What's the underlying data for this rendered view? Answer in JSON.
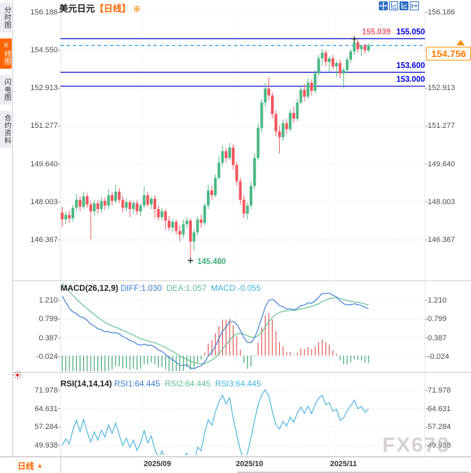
{
  "app": {
    "symbol": "美元日元",
    "period": "【日线】",
    "add_symbol": "⊕"
  },
  "sidebar": {
    "tabs": [
      {
        "label": "分时图",
        "active": false
      },
      {
        "label": "K线图",
        "active": true
      },
      {
        "label": "闪电图",
        "active": false
      },
      {
        "label": "合约资料",
        "active": false
      }
    ]
  },
  "toolbar": {
    "icons": [
      "pan-icon",
      "fit-axis-icon",
      "fit-chart-icon",
      "exit-icon"
    ]
  },
  "bottom_bar": {
    "period_label": "日线",
    "arrow": "▲"
  },
  "watermark": "FX678",
  "colors": {
    "up": "#4cb885",
    "down": "#f2565c",
    "blue_line": "#1212cf",
    "dashed_line": "#2f9fe8",
    "orange": "#ff7a00",
    "pink": "#ee5d74",
    "green_label": "#3eae7c",
    "diff": "#3a7bd5",
    "dea": "#5fc08d",
    "macd_cyan": "#3db3da",
    "hist_up": "#e05252",
    "hist_down": "#3ea36f",
    "rsi": "#49b3dc",
    "grid": "#dedede",
    "axis_text": "#4d4d4d"
  },
  "chart_data": {
    "type": "candlestick",
    "title": "美元日元 日线",
    "main": {
      "ylim": [
        146.367,
        156.186
      ],
      "axis_labels": [
        "156.186",
        "154.550",
        "152.913",
        "151.277",
        "149.640",
        "148.003",
        "146.367"
      ],
      "axis_values": [
        156.186,
        154.55,
        152.913,
        151.277,
        149.64,
        148.003,
        146.367
      ],
      "hlines": [
        {
          "value": 155.05,
          "label": "155.050"
        },
        {
          "value": 153.6,
          "label": "153.600"
        },
        {
          "value": 153.0,
          "label": "153.000"
        }
      ],
      "current_price": {
        "value": 154.756,
        "label": "154.756"
      },
      "high_marker": {
        "index": 82,
        "value": 155.039,
        "label": "155.039"
      },
      "low_marker": {
        "index": 36,
        "value": 145.48,
        "label": "145.480"
      },
      "candles": [
        [
          147.55,
          147.8,
          146.95,
          147.25
        ],
        [
          147.25,
          147.6,
          147.05,
          147.45
        ],
        [
          147.45,
          147.65,
          147.1,
          147.3
        ],
        [
          147.3,
          147.9,
          147.15,
          147.75
        ],
        [
          147.75,
          148.35,
          147.6,
          148.1
        ],
        [
          148.1,
          148.25,
          147.6,
          147.8
        ],
        [
          147.8,
          148.45,
          147.7,
          148.25
        ],
        [
          148.25,
          148.4,
          147.75,
          147.9
        ],
        [
          147.9,
          148.05,
          146.4,
          147.6
        ],
        [
          147.6,
          148.1,
          147.4,
          147.95
        ],
        [
          147.95,
          148.1,
          147.5,
          147.7
        ],
        [
          147.7,
          148.2,
          147.55,
          148.05
        ],
        [
          148.05,
          148.2,
          147.65,
          147.85
        ],
        [
          147.85,
          148.55,
          147.7,
          148.3
        ],
        [
          148.3,
          148.45,
          147.85,
          148.05
        ],
        [
          148.05,
          148.75,
          147.95,
          148.45
        ],
        [
          148.45,
          148.6,
          147.95,
          148.1
        ],
        [
          148.1,
          148.25,
          147.55,
          147.75
        ],
        [
          147.75,
          148.15,
          147.6,
          148.0
        ],
        [
          148.0,
          148.1,
          147.35,
          147.7
        ],
        [
          147.7,
          148.05,
          147.5,
          147.95
        ],
        [
          147.95,
          148.1,
          147.45,
          147.6
        ],
        [
          147.6,
          147.95,
          147.4,
          147.85
        ],
        [
          147.85,
          148.7,
          147.75,
          148.3
        ],
        [
          148.3,
          148.45,
          147.8,
          147.9
        ],
        [
          147.9,
          148.25,
          147.7,
          148.15
        ],
        [
          148.15,
          148.3,
          147.3,
          147.7
        ],
        [
          147.7,
          147.85,
          147.2,
          147.35
        ],
        [
          147.35,
          147.75,
          147.2,
          147.6
        ],
        [
          147.6,
          147.7,
          146.8,
          147.2
        ],
        [
          147.2,
          147.4,
          146.75,
          146.9
        ],
        [
          146.9,
          147.3,
          146.7,
          147.15
        ],
        [
          147.15,
          147.25,
          146.6,
          146.75
        ],
        [
          146.75,
          147.0,
          146.3,
          146.6
        ],
        [
          146.6,
          147.25,
          146.45,
          147.05
        ],
        [
          147.05,
          147.35,
          146.85,
          147.2
        ],
        [
          147.2,
          147.3,
          145.48,
          146.3
        ],
        [
          146.3,
          146.85,
          145.9,
          146.7
        ],
        [
          146.7,
          147.4,
          146.55,
          147.25
        ],
        [
          147.25,
          147.45,
          146.9,
          147.1
        ],
        [
          147.1,
          147.95,
          147.0,
          147.85
        ],
        [
          147.85,
          148.75,
          147.7,
          148.5
        ],
        [
          148.5,
          148.7,
          148.1,
          148.3
        ],
        [
          148.3,
          149.2,
          148.2,
          149.05
        ],
        [
          149.05,
          150.0,
          148.95,
          149.7
        ],
        [
          149.7,
          150.45,
          149.55,
          150.2
        ],
        [
          150.2,
          150.35,
          149.7,
          149.9
        ],
        [
          149.9,
          150.55,
          149.8,
          150.35
        ],
        [
          150.35,
          150.5,
          149.4,
          149.6
        ],
        [
          149.6,
          149.75,
          148.7,
          148.9
        ],
        [
          148.9,
          149.05,
          147.9,
          148.1
        ],
        [
          148.1,
          148.3,
          147.3,
          147.5
        ],
        [
          147.5,
          148.0,
          147.25,
          147.85
        ],
        [
          147.85,
          148.9,
          147.7,
          148.7
        ],
        [
          148.7,
          150.1,
          148.55,
          149.9
        ],
        [
          149.9,
          151.4,
          149.8,
          151.2
        ],
        [
          151.2,
          152.45,
          151.0,
          152.3
        ],
        [
          152.3,
          153.15,
          152.1,
          152.9
        ],
        [
          152.9,
          153.4,
          152.4,
          152.6
        ],
        [
          152.6,
          152.75,
          151.6,
          151.8
        ],
        [
          151.8,
          151.95,
          150.85,
          151.05
        ],
        [
          151.05,
          151.3,
          150.1,
          150.8
        ],
        [
          150.8,
          151.55,
          150.65,
          151.4
        ],
        [
          151.4,
          151.6,
          150.95,
          151.15
        ],
        [
          151.15,
          152.0,
          151.05,
          151.85
        ],
        [
          151.85,
          152.1,
          151.4,
          151.6
        ],
        [
          151.6,
          152.45,
          151.5,
          152.3
        ],
        [
          152.3,
          153.0,
          152.2,
          152.85
        ],
        [
          152.85,
          153.1,
          152.35,
          152.55
        ],
        [
          152.55,
          153.35,
          152.45,
          153.15
        ],
        [
          153.15,
          153.3,
          152.6,
          152.8
        ],
        [
          152.8,
          153.7,
          152.7,
          153.55
        ],
        [
          153.55,
          154.35,
          153.45,
          154.2
        ],
        [
          154.2,
          154.6,
          153.9,
          154.45
        ],
        [
          154.45,
          154.55,
          153.85,
          154.05
        ],
        [
          154.05,
          154.3,
          153.6,
          154.2
        ],
        [
          154.2,
          154.35,
          153.7,
          153.85
        ],
        [
          153.85,
          154.1,
          153.4,
          154.0
        ],
        [
          154.0,
          154.15,
          153.35,
          153.55
        ],
        [
          153.55,
          153.8,
          152.9,
          153.7
        ],
        [
          153.7,
          154.25,
          153.55,
          154.15
        ],
        [
          154.15,
          154.6,
          154.0,
          154.5
        ],
        [
          154.5,
          155.039,
          154.35,
          154.9
        ],
        [
          154.9,
          155.0,
          154.45,
          154.6
        ],
        [
          154.6,
          154.8,
          154.3,
          154.75
        ],
        [
          154.75,
          154.85,
          154.4,
          154.55
        ],
        [
          154.55,
          154.85,
          154.45,
          154.756
        ]
      ]
    },
    "macd": {
      "title": "MACD(26,12,9)",
      "diff_text": "DIFF:1.030",
      "dea_text": "DEA:1.057",
      "macd_text": "MACD:-0.055",
      "axis_labels": [
        "1.210",
        "0.799",
        "0.387",
        "-0.024"
      ],
      "axis_values": [
        1.21,
        0.799,
        0.387,
        -0.024
      ]
    },
    "rsi": {
      "title": "RSI(14,14,14)",
      "rsi1_text": "RSI1:64.445",
      "rsi2_text": "RSI2:64.445",
      "rsi3_text": "RSI3:64.445",
      "axis_labels": [
        "71.978",
        "64.631",
        "57.284",
        "49.938"
      ],
      "axis_values": [
        71.978,
        64.631,
        57.284,
        49.938
      ]
    },
    "xaxis": {
      "labels": [
        "2025/09",
        "2025/10",
        "2025/11"
      ],
      "x": [
        207,
        341,
        478
      ]
    }
  }
}
